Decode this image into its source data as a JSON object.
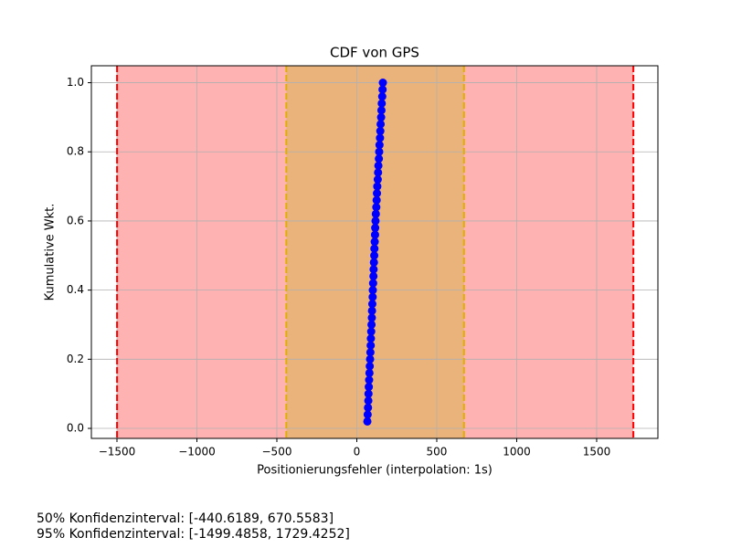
{
  "chart_data": {
    "type": "scatter",
    "title": "CDF von GPS",
    "x_label": "Positionierungsfehler (interpolation: 1s)",
    "y_label": "Kumulative Wkt.",
    "color": "#0000ff",
    "x": [
      66,
      68,
      70,
      72,
      73,
      75,
      77,
      79,
      81,
      83,
      85,
      87,
      88,
      90,
      92,
      94,
      95,
      97,
      99,
      100,
      102,
      104,
      105,
      107,
      109,
      110,
      112,
      114,
      115,
      117,
      119,
      122,
      124,
      126,
      128,
      131,
      133,
      135,
      138,
      140,
      142,
      145,
      147,
      149,
      152,
      154,
      156,
      159,
      161,
      163
    ],
    "values": [
      0.02,
      0.04,
      0.06,
      0.08,
      0.1,
      0.12,
      0.14,
      0.16,
      0.18,
      0.2,
      0.22,
      0.24,
      0.26,
      0.28,
      0.3,
      0.32,
      0.34,
      0.36,
      0.38,
      0.4,
      0.42,
      0.44,
      0.46,
      0.48,
      0.5,
      0.52,
      0.54,
      0.56,
      0.58,
      0.6,
      0.62,
      0.64,
      0.66,
      0.68,
      0.7,
      0.72,
      0.74,
      0.76,
      0.78,
      0.8,
      0.82,
      0.84,
      0.86,
      0.88,
      0.9,
      0.92,
      0.94,
      0.96,
      0.98,
      1.0
    ],
    "intervals": [
      {
        "lo": -1499.4858,
        "hi": 1729.4252,
        "fill": "#ffb2b2",
        "line_color": "#ff0000"
      },
      {
        "lo": -440.6189,
        "hi": 670.5583,
        "fill": "#e9b37b",
        "line_color": "#e0b000"
      }
    ],
    "annotations": [
      "50% Konfidenzinterval: [-440.6189, 670.5583]",
      "95% Konfidenzinterval: [-1499.4858, 1729.4252]"
    ],
    "xlim": [
      -1660,
      1883
    ],
    "ylim": [
      -0.029,
      1.049
    ],
    "xticks": [
      {
        "value": -1500,
        "label": "−1500"
      },
      {
        "value": -1000,
        "label": "−1000"
      },
      {
        "value": -500,
        "label": "−500"
      },
      0,
      500,
      1000,
      1500
    ],
    "yticks": [
      {
        "value": 0,
        "label": "0.0"
      },
      0.2,
      0.4,
      0.6,
      0.8,
      {
        "value": 1,
        "label": "1.0"
      }
    ],
    "grid": true
  }
}
